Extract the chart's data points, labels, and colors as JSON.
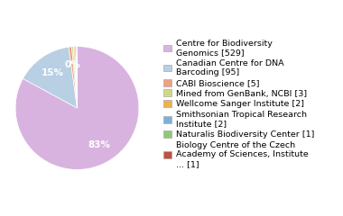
{
  "labels": [
    "Centre for Biodiversity\nGenomics [529]",
    "Canadian Centre for DNA\nBarcoding [95]",
    "CABI Bioscience [5]",
    "Mined from GenBank, NCBI [3]",
    "Wellcome Sanger Institute [2]",
    "Smithsonian Tropical Research\nInstitute [2]",
    "Naturalis Biodiversity Center [1]",
    "Biology Centre of the Czech\nAcademy of Sciences, Institute\n... [1]"
  ],
  "values": [
    529,
    95,
    5,
    3,
    2,
    2,
    1,
    1
  ],
  "colors": [
    "#d9b3e0",
    "#b8cfe4",
    "#f0a080",
    "#d0d888",
    "#f0b050",
    "#7db0d8",
    "#90c878",
    "#c05040"
  ],
  "legend_fontsize": 6.8,
  "figsize": [
    3.8,
    2.4
  ],
  "dpi": 100
}
